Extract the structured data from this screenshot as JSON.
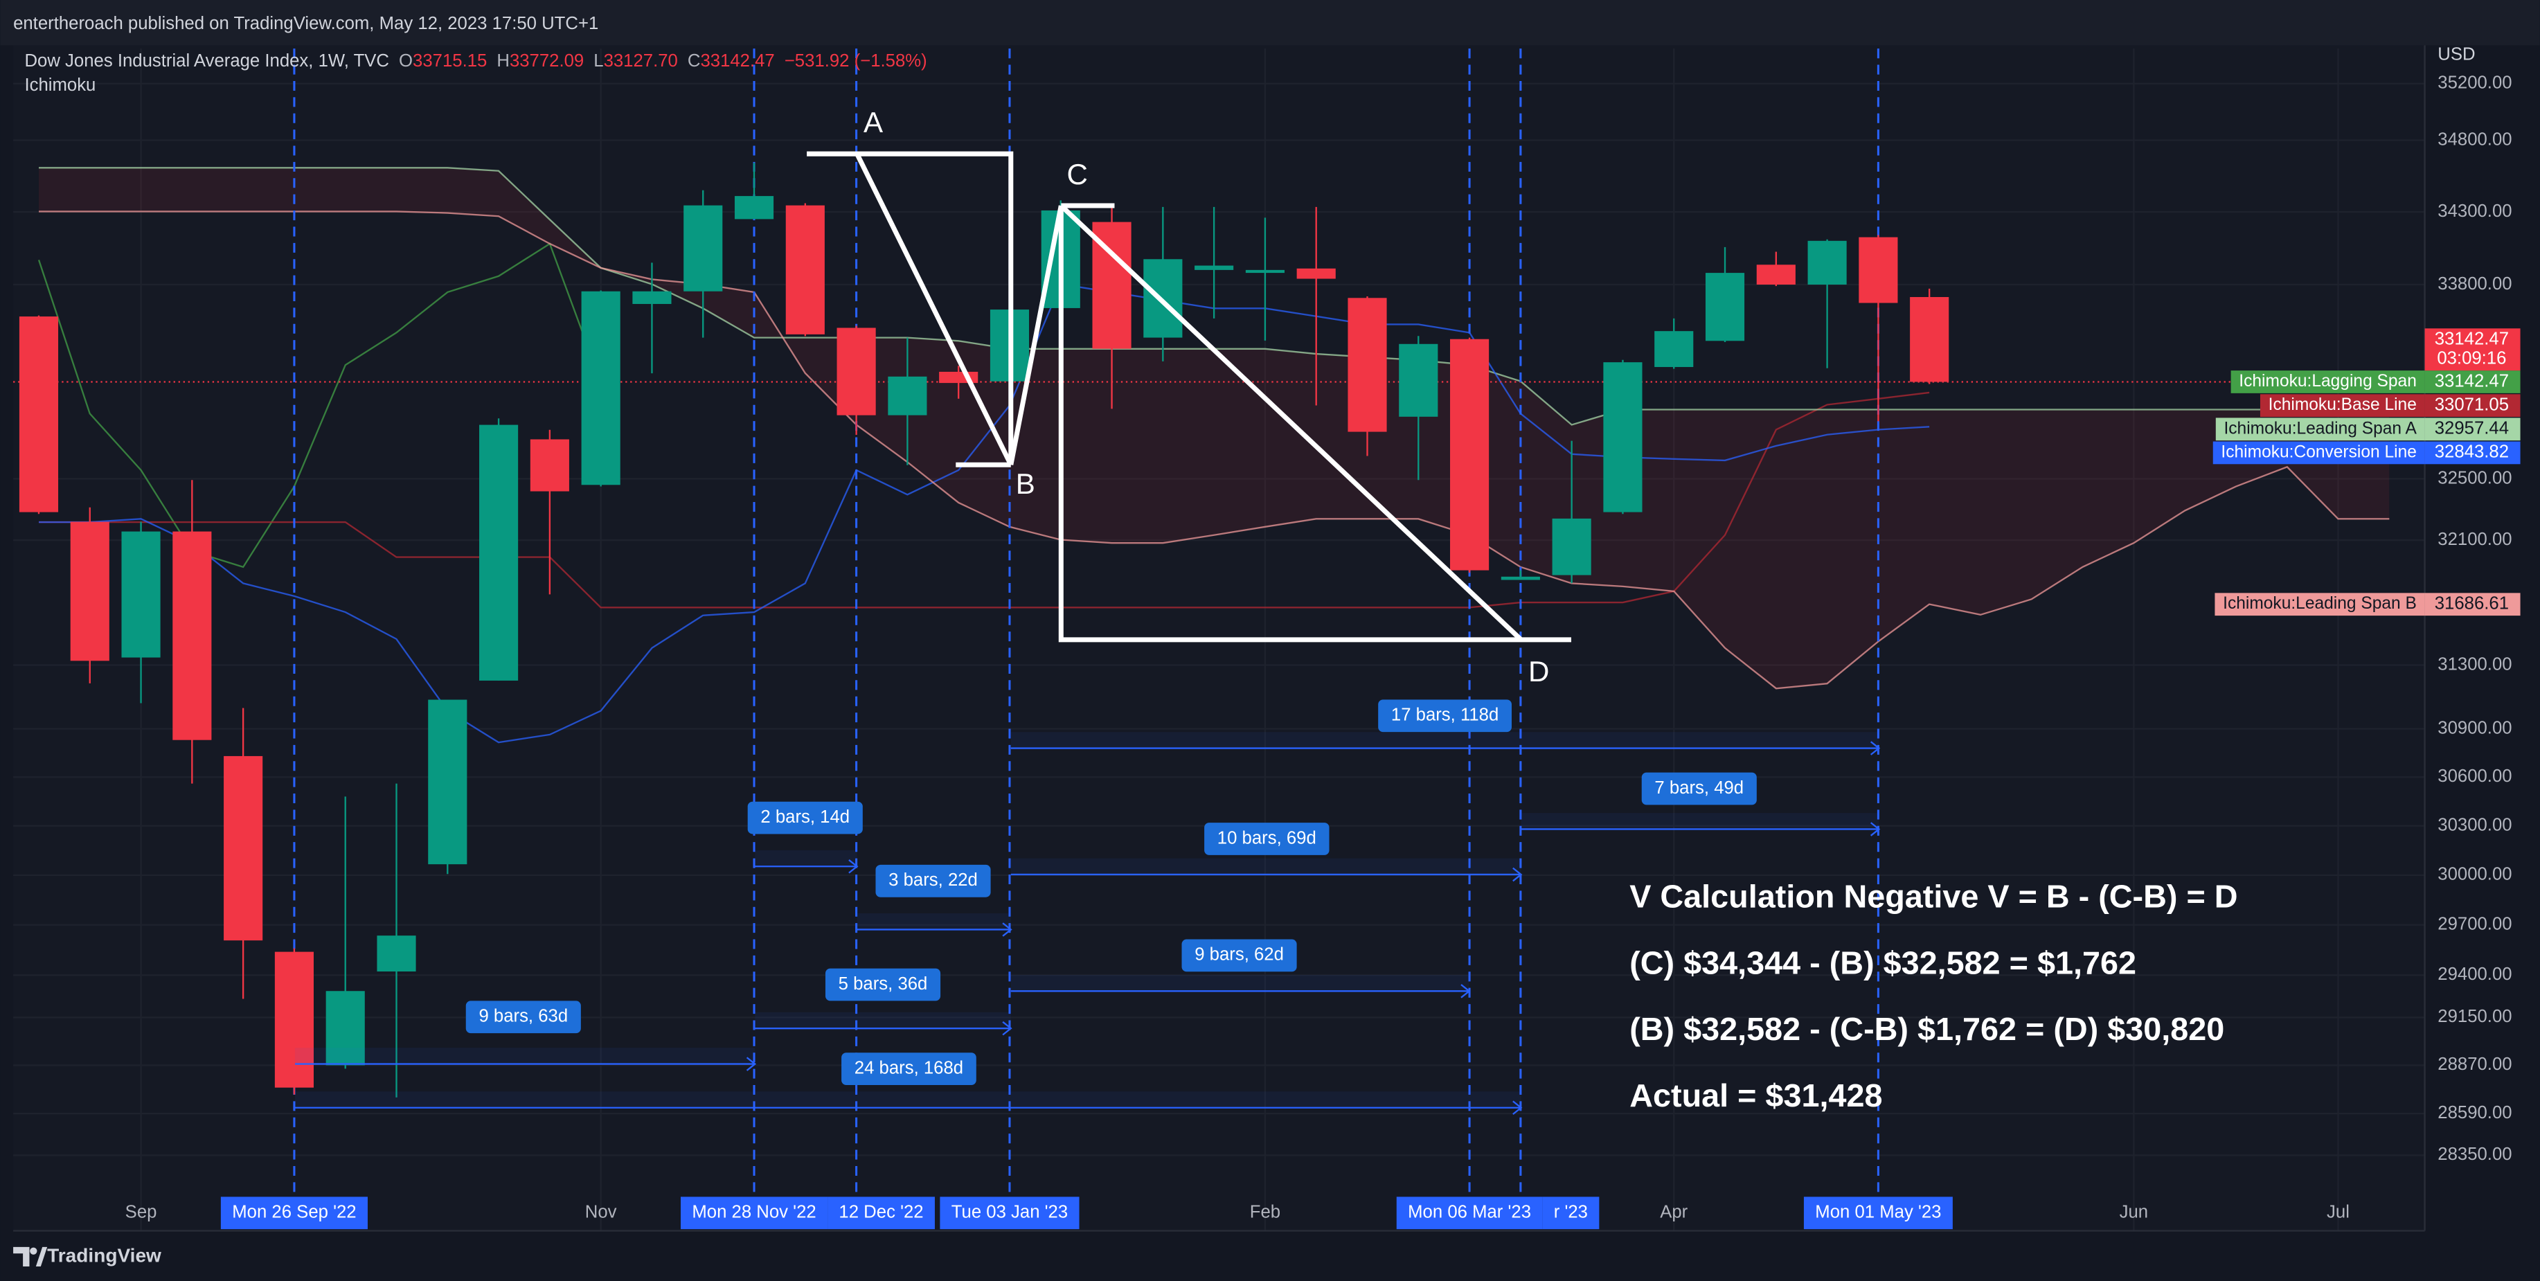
{
  "header": {
    "publisher": "entertheroach published on TradingView.com, May 12, 2023 17:50 UTC+1"
  },
  "footer": {
    "brand": "TradingView"
  },
  "chart_data": {
    "type": "candlestick",
    "symbol": "Dow Jones Industrial Average Index, 1W, TVC",
    "legend_values": [
      {
        "key": "O",
        "value": "33715.15"
      },
      {
        "key": "H",
        "value": "33772.09"
      },
      {
        "key": "L",
        "value": "33127.70"
      },
      {
        "key": "C",
        "value": "33142.47"
      }
    ],
    "change": "−531.92 (−1.58%)",
    "indicator": "Ichimoku",
    "currency": "USD",
    "log_scale": true,
    "grid": true,
    "ylim": [
      28150,
      35450
    ],
    "yticks": [
      {
        "value": 35200,
        "label": "35200.00"
      },
      {
        "value": 34800,
        "label": "34800.00"
      },
      {
        "value": 34300,
        "label": "34300.00"
      },
      {
        "value": 33800,
        "label": "33800.00"
      },
      {
        "value": 32500,
        "label": "32500.00"
      },
      {
        "value": 32100,
        "label": "32100.00"
      },
      {
        "value": 31300,
        "label": "31300.00"
      },
      {
        "value": 30900,
        "label": "30900.00"
      },
      {
        "value": 30600,
        "label": "30600.00"
      },
      {
        "value": 30300,
        "label": "30300.00"
      },
      {
        "value": 30000,
        "label": "30000.00"
      },
      {
        "value": 29700,
        "label": "29700.00"
      },
      {
        "value": 29400,
        "label": "29400.00"
      },
      {
        "value": 29150,
        "label": "29150.00"
      },
      {
        "value": 28870,
        "label": "28870.00"
      },
      {
        "value": 28590,
        "label": "28590.00"
      },
      {
        "value": 28350,
        "label": "28350.00"
      }
    ],
    "categories": [
      null,
      null,
      "Sep",
      null,
      null,
      null,
      null,
      null,
      null,
      null,
      null,
      "Nov",
      null,
      null,
      null,
      null,
      null,
      null,
      null,
      null,
      null,
      null,
      null,
      null,
      "Feb",
      null,
      null,
      null,
      null,
      null,
      null,
      null,
      "Apr",
      null,
      null,
      null,
      null,
      null,
      null,
      null,
      null,
      "Jun",
      null,
      null,
      null,
      "Jul",
      null
    ],
    "highlighted_categories": [
      null,
      null,
      null,
      null,
      null,
      "Mon 26 Sep '22",
      null,
      null,
      null,
      null,
      null,
      null,
      null,
      null,
      "Mon 28 Nov '22",
      null,
      "12 Dec '22",
      null,
      null,
      "Tue 03 Jan '23",
      null,
      null,
      null,
      null,
      null,
      null,
      null,
      null,
      "Mon 06 Mar '23",
      "r '23",
      null,
      null,
      null,
      null,
      null,
      null,
      "Mon 01 May '23",
      null,
      null,
      null,
      null,
      null,
      null,
      null,
      null,
      null,
      null
    ],
    "candles": {
      "up_color": "#089981",
      "down_color": "#f23645",
      "open": [
        33583,
        32219,
        31348,
        32156,
        30730,
        29539,
        28870,
        29422,
        30066,
        31202,
        32760,
        32460,
        33668,
        33754,
        34250,
        34345,
        33506,
        32920,
        33210,
        33146,
        33640,
        34230,
        33440,
        33900,
        33880,
        33910,
        33709,
        32910,
        33430,
        31843,
        31874,
        32282,
        33242,
        33418,
        33936,
        33800,
        34125,
        33715.15,
        null,
        null,
        null,
        null,
        null,
        null,
        null,
        null,
        null
      ],
      "high": [
        33590,
        32313,
        32219,
        32492,
        31030,
        29560,
        30480,
        30560,
        31082,
        32899,
        32823,
        33760,
        33950,
        34450,
        34641,
        34360,
        33520,
        33440,
        33250,
        33630,
        34380,
        34345,
        34334,
        34334,
        34260,
        34334,
        33720,
        33451,
        33440,
        31905,
        32750,
        33290,
        33570,
        34057,
        34025,
        34110,
        34140,
        33772.09,
        null,
        null,
        null,
        null,
        null,
        null,
        null,
        null,
        null
      ],
      "low": [
        32270,
        31185,
        31060,
        30560,
        29260,
        28700,
        28850,
        28683,
        30007,
        31202,
        31750,
        32450,
        33200,
        33440,
        34250,
        33450,
        32790,
        32590,
        33030,
        32580,
        33620,
        32963,
        33280,
        33570,
        33420,
        32985,
        32650,
        32492,
        31890,
        31843,
        31822,
        32270,
        33230,
        33410,
        33790,
        33234,
        32880,
        33127.7,
        null,
        null,
        null,
        null,
        null,
        null,
        null,
        null,
        null
      ],
      "close": [
        32282,
        31327,
        32156,
        30830,
        29607,
        28740,
        29306,
        29636,
        31082,
        32856,
        32418,
        33754,
        33754,
        34345,
        34410,
        33462,
        32920,
        33178,
        33135,
        33630,
        34310,
        33365,
        33974,
        33930,
        33900,
        33840,
        32810,
        33397,
        31905,
        31864,
        32240,
        33274,
        33484,
        33880,
        33800,
        34100,
        33675,
        33142.47,
        null,
        null,
        null,
        null,
        null,
        null,
        null,
        null,
        null
      ]
    },
    "last_price": 33142.47,
    "countdown": "03:09:16",
    "series": [
      {
        "name": "Ichimoku:Lagging Span",
        "color": "#43a047",
        "tag_value": 33142.47,
        "values": [
          33969,
          32931,
          32557,
          32029,
          31926,
          32450,
          33255,
          33474,
          33748,
          33858,
          34080,
          33142.47,
          null,
          null,
          null,
          null,
          null,
          null,
          null,
          null,
          null,
          null,
          null,
          null,
          null,
          null,
          null,
          null,
          null,
          null,
          null,
          null,
          null,
          null,
          null,
          null,
          null,
          null,
          null,
          null,
          null,
          null,
          null,
          null,
          null,
          null,
          null
        ]
      },
      {
        "name": "Ichimoku:Base Line",
        "color": "#b22833",
        "tag_value": 33071.05,
        "values": [
          32217,
          32217,
          32217,
          32217,
          32217,
          32217,
          32217,
          31990,
          31990,
          31990,
          31990,
          31666,
          31666,
          31666,
          31666,
          31666,
          31666,
          31666,
          31666,
          31666,
          31666,
          31666,
          31666,
          31666,
          31666,
          31666,
          31666,
          31666,
          31666,
          31698,
          31698,
          31698,
          31770,
          32133,
          32824,
          32990,
          33030,
          33071.05,
          null,
          null,
          null,
          null,
          null,
          null,
          null,
          null,
          null
        ]
      },
      {
        "name": "Ichimoku:Leading Span A",
        "color": "#a5d6a7",
        "tag_value": 32957.44,
        "values": [
          34607,
          34607,
          34607,
          34607,
          34607,
          34607,
          34607,
          34607,
          34607,
          34585,
          34247,
          33914,
          33803,
          33638,
          33440,
          33440,
          33440,
          33440,
          33418,
          33364,
          33364,
          33364,
          33364,
          33364,
          33364,
          33331,
          33309,
          33288,
          33255,
          33147,
          32856,
          32957.44,
          32957.44,
          32957.44,
          32957.44,
          32957.44,
          32957.44,
          32957.44,
          32957.44,
          32957.44,
          32957.44,
          32957.44,
          32957.44,
          32957.44,
          32957.44,
          32957.44,
          32957.44
        ]
      },
      {
        "name": "Ichimoku:Conversion Line",
        "color": "#2962ff",
        "tag_value": 32843.82,
        "values": [
          32217,
          32217,
          32238,
          32081,
          31821,
          31739,
          31636,
          31465,
          31012,
          30815,
          30864,
          31012,
          31409,
          31616,
          31636,
          31821,
          32557,
          32397,
          32557,
          32985,
          33803,
          33748,
          33693,
          33638,
          33638,
          33584,
          33529,
          33529,
          33474,
          32931,
          32663,
          32642,
          32631,
          32621,
          32717,
          32791,
          32824,
          32843.82,
          null,
          null,
          null,
          null,
          null,
          null,
          null,
          null,
          null
        ]
      },
      {
        "name": "Ichimoku:Leading Span B",
        "color": "#ef9a9a",
        "tag_value": 31686.61,
        "values": [
          34303,
          34303,
          34303,
          34303,
          34303,
          34303,
          34303,
          34303,
          34292,
          34270,
          34080,
          33914,
          33836,
          33803,
          33748,
          33201,
          32856,
          32610,
          32344,
          32186,
          32102,
          32081,
          32081,
          32133,
          32186,
          32238,
          32238,
          32238,
          32133,
          31926,
          31821,
          31801,
          31770,
          31409,
          31153,
          31183,
          31450,
          31686.61,
          31620,
          31719,
          31926,
          32081,
          32292,
          32450,
          32578,
          32238,
          32238
        ]
      }
    ],
    "annotations": {
      "points": [
        "A",
        "B",
        "C",
        "D"
      ],
      "measurements": [
        "9 bars, 63d",
        "2 bars, 14d",
        "3 bars, 22d",
        "5 bars, 36d",
        "24 bars, 168d",
        "10 bars, 69d",
        "9 bars, 62d",
        "17 bars, 118d",
        "7 bars, 49d"
      ],
      "notes": [
        "V Calculation Negative V = B - (C-B) = D",
        "(C) $34,344 - (B) $32,582 = $1,762",
        "(B) $32,582 - (C-B) $1,762 = (D) $30,820",
        "Actual = $31,428"
      ]
    }
  }
}
